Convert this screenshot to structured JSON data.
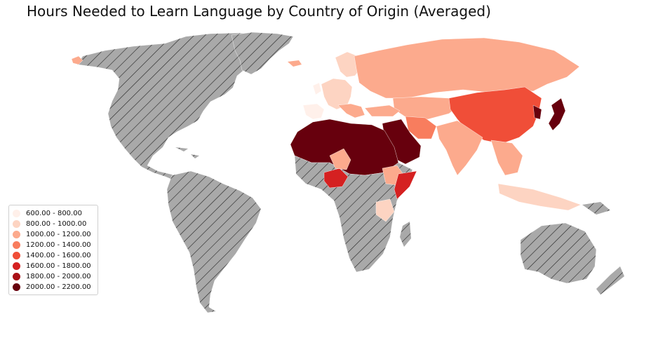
{
  "title": "Hours Needed to Learn Language by Country of Origin (Averaged)",
  "colors": {
    "no_data_fill": "#a9a9a9",
    "hatch": "#222222",
    "class_600_800": "#fff0ea",
    "class_800_1000": "#fdd4c2",
    "class_1000_1200": "#fcaa8d",
    "class_1200_1400": "#f87d5e",
    "class_1400_1600": "#f04e38",
    "class_1600_1800": "#d52121",
    "class_1800_2000": "#a91016",
    "class_2000_2200": "#67000d"
  },
  "legend": [
    {
      "label": "600.00 - 800.00",
      "color": "#fff0ea"
    },
    {
      "label": "800.00 - 1000.00",
      "color": "#fdd4c2"
    },
    {
      "label": "1000.00 - 1200.00",
      "color": "#fcaa8d"
    },
    {
      "label": "1200.00 - 1400.00",
      "color": "#f87d5e"
    },
    {
      "label": "1400.00 - 1600.00",
      "color": "#f04e38"
    },
    {
      "label": "1600.00 - 1800.00",
      "color": "#d52121"
    },
    {
      "label": "1800.00 - 2000.00",
      "color": "#a91016"
    },
    {
      "label": "2000.00 - 2200.00",
      "color": "#67000d"
    }
  ]
}
